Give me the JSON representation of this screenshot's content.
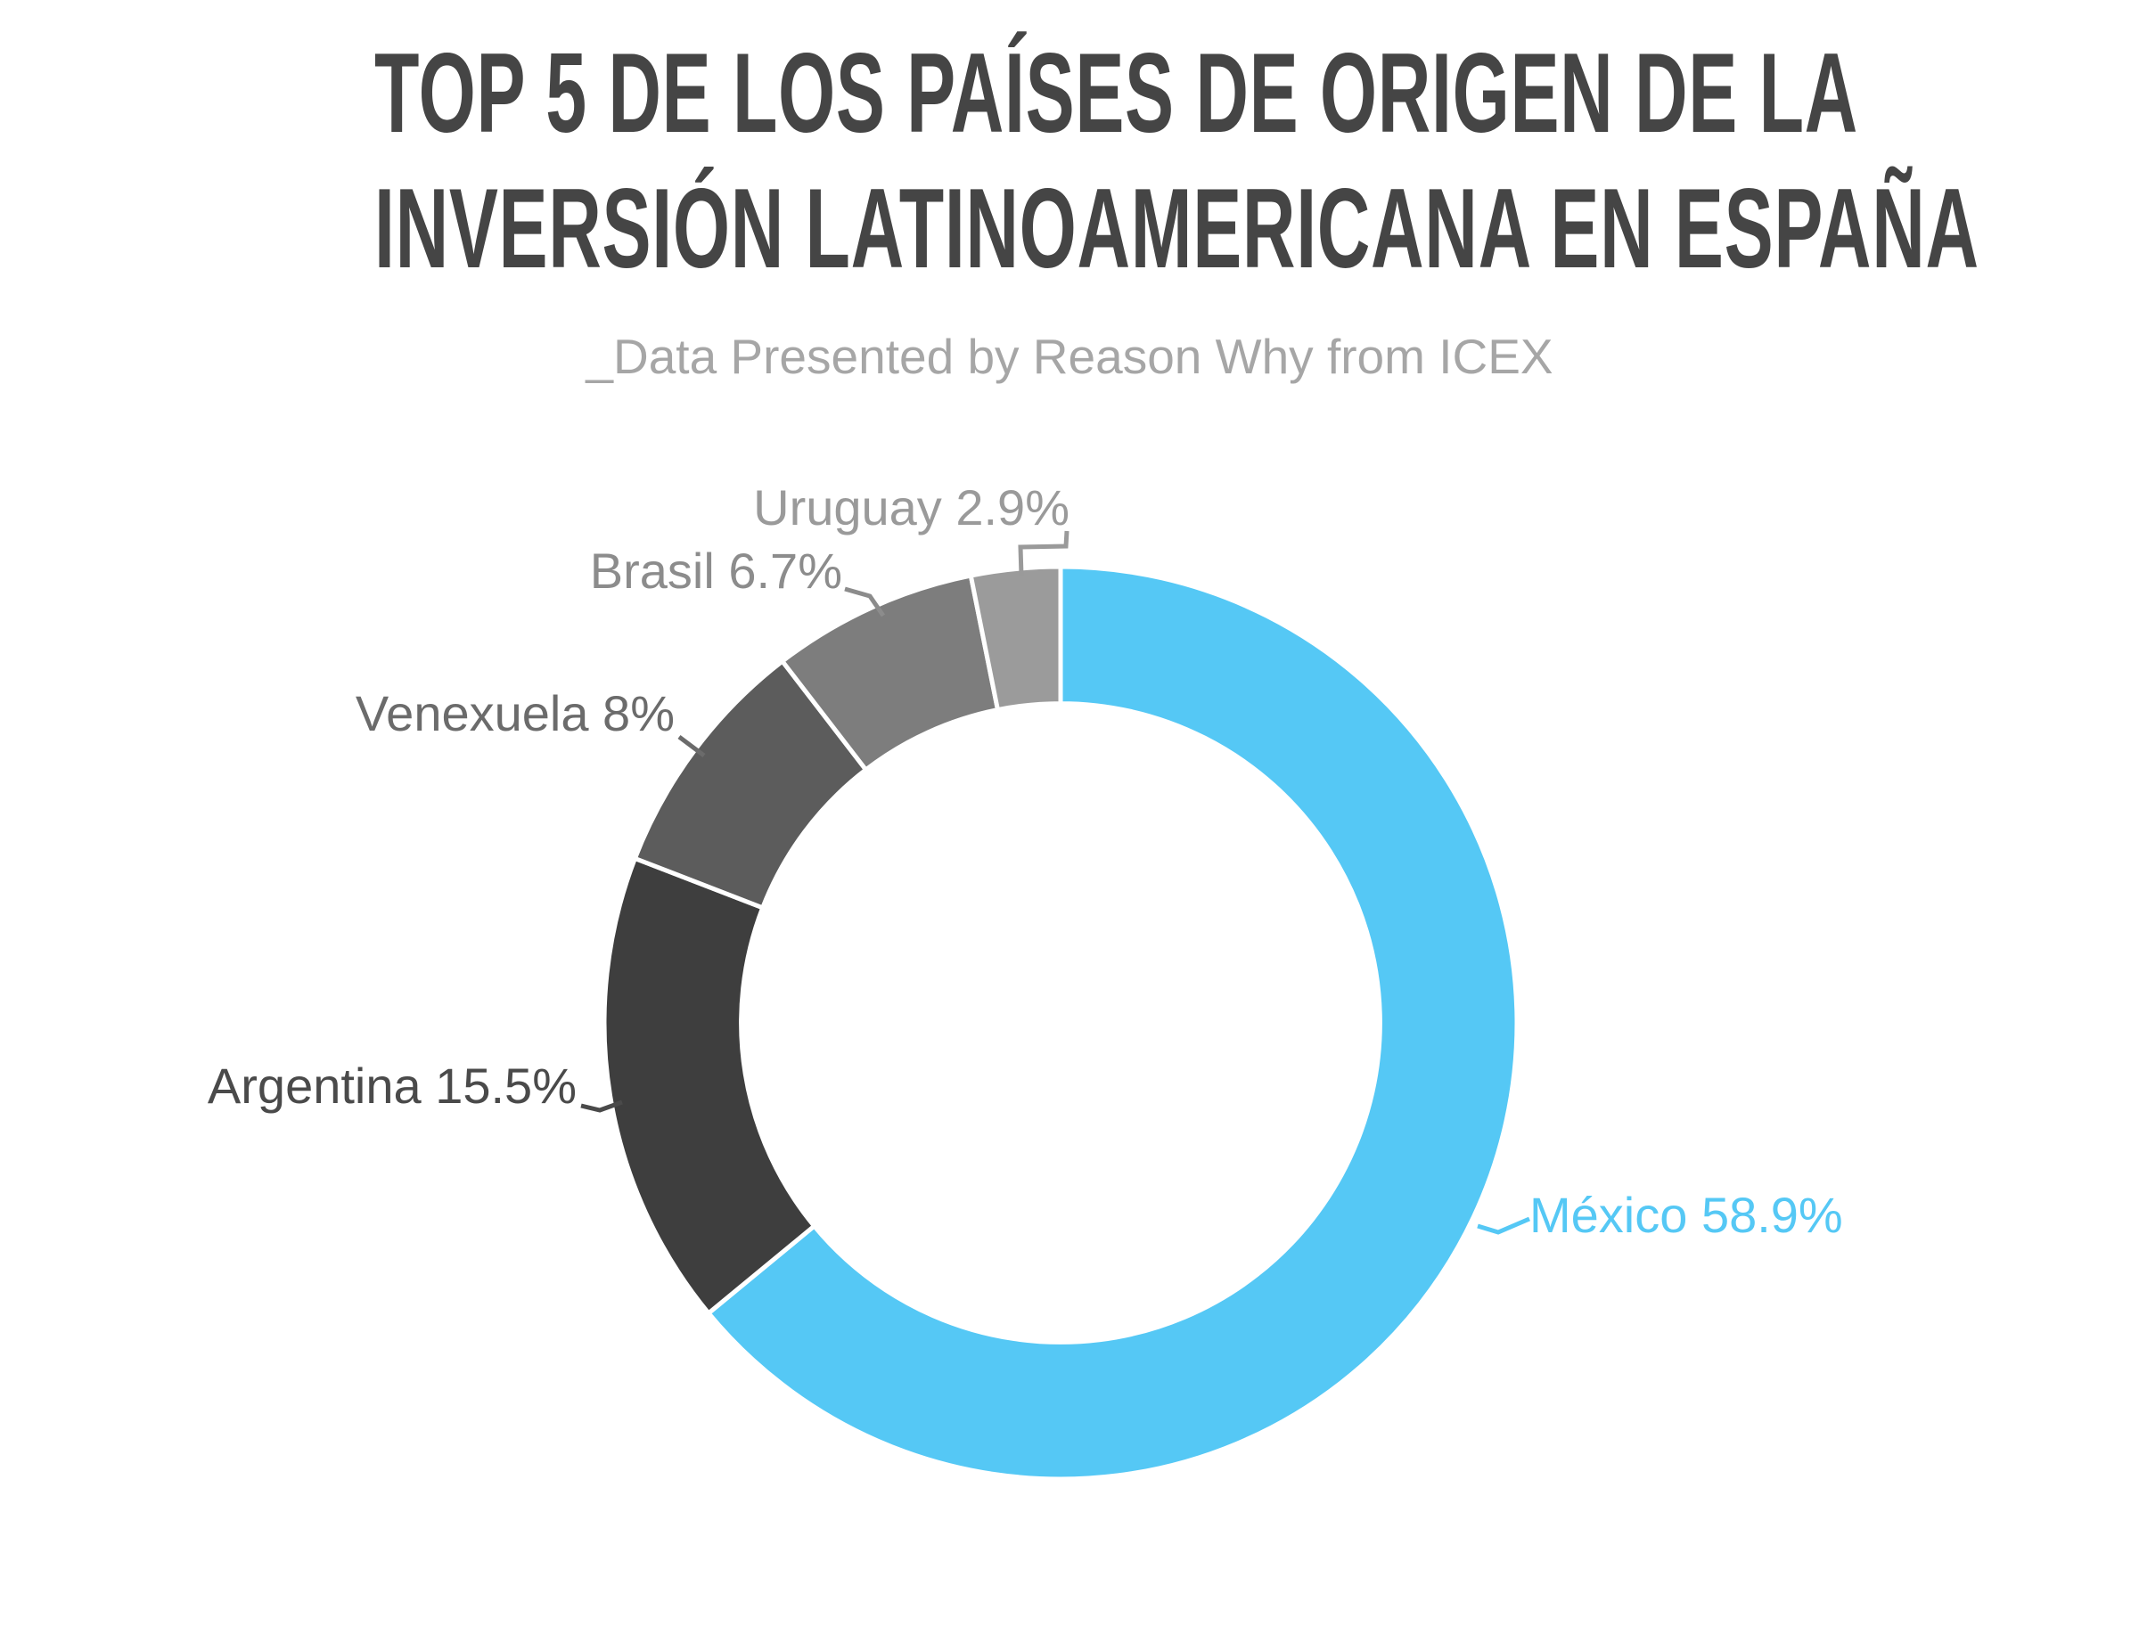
{
  "title": {
    "line1": "TOP 5 DE LOS PAÍSES DE ORIGEN DE LA",
    "line2": "INVERSIÓN LATINOAMERICANA EN ESPAÑA"
  },
  "subtitle": "_Data Presented by Reason Why from ICEX",
  "chart_data": {
    "type": "pie",
    "subtype": "donut",
    "title": "TOP 5 DE LOS PAÍSES DE ORIGEN DE LA INVERSIÓN LATINOAMERICANA EN ESPAÑA",
    "subtitle": "_Data Presented by Reason Why from ICEX",
    "start_position": "top",
    "direction": "clockwise",
    "hole_ratio": 0.7,
    "separator_color": "#ffffff",
    "legend_position": "callout-labels",
    "series": [
      {
        "label": "México",
        "value_pct": 58.9,
        "display": "México 58.9%",
        "color": "#55c8f5",
        "label_color": "#55c8f5"
      },
      {
        "label": "Argentina",
        "value_pct": 15.5,
        "display": "Argentina 15.5%",
        "color": "#3e3e3e",
        "label_color": "#4a4a4a"
      },
      {
        "label": "Venexuela",
        "value_pct": 8,
        "display": "Venexuela 8%",
        "color": "#5c5c5c",
        "label_color": "#6b6b6b"
      },
      {
        "label": "Brasil",
        "value_pct": 6.7,
        "display": "Brasil 6.7%",
        "color": "#7d7d7d",
        "label_color": "#8c8c8c"
      },
      {
        "label": "Uruguay",
        "value_pct": 2.9,
        "display": "Uruguay 2.9%",
        "color": "#9b9b9b",
        "label_color": "#9a9a9a"
      }
    ]
  }
}
